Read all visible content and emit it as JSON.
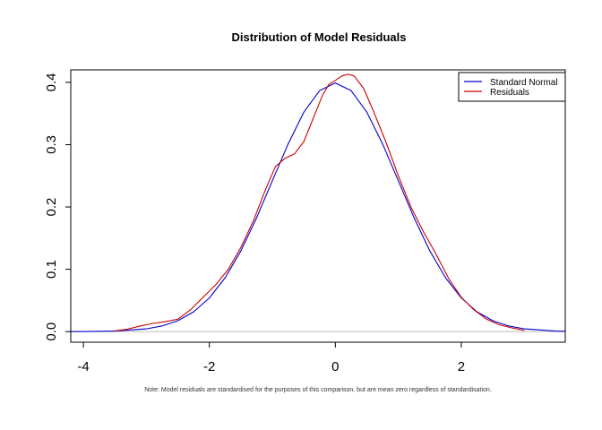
{
  "chart_data": {
    "type": "line",
    "title": "Distribution of Model Residuals",
    "xlabel": "",
    "ylabel": "",
    "note": "Note: Model residuals are standardised for the purposes of this comparison, but are mean zero regardless of standardisation.",
    "xlim": [
      -4.2,
      3.65
    ],
    "ylim": [
      -0.017,
      0.42
    ],
    "x_ticks": [
      -4,
      -2,
      0,
      2
    ],
    "x_tick_labels": [
      "-4",
      "-2",
      "0",
      "2"
    ],
    "y_ticks": [
      0.0,
      0.1,
      0.2,
      0.3,
      0.4
    ],
    "y_tick_labels": [
      "0.0",
      "0.1",
      "0.2",
      "0.3",
      "0.4"
    ],
    "reference_line": {
      "y": 0,
      "color": "#bebebe"
    },
    "legend": {
      "position": "top-right"
    },
    "series": [
      {
        "name": "Standard Normal",
        "color": "#0000cc",
        "x": [
          -4.2,
          -4.0,
          -3.5,
          -3.0,
          -2.75,
          -2.5,
          -2.25,
          -2.0,
          -1.75,
          -1.5,
          -1.25,
          -1.0,
          -0.75,
          -0.5,
          -0.25,
          0.0,
          0.25,
          0.5,
          0.75,
          1.0,
          1.25,
          1.5,
          1.75,
          2.0,
          2.25,
          2.5,
          2.75,
          3.0,
          3.5,
          3.65
        ],
        "y": [
          0.0001,
          0.0001,
          0.0009,
          0.0044,
          0.0091,
          0.0175,
          0.0317,
          0.054,
          0.0863,
          0.1295,
          0.1826,
          0.242,
          0.3011,
          0.3521,
          0.3867,
          0.3989,
          0.3867,
          0.3521,
          0.3011,
          0.242,
          0.1826,
          0.1295,
          0.0863,
          0.054,
          0.0317,
          0.0175,
          0.0091,
          0.0044,
          0.0009,
          0.0005
        ]
      },
      {
        "name": "Residuals",
        "color": "#cc0000",
        "x": [
          -3.5,
          -3.3,
          -3.1,
          -2.9,
          -2.7,
          -2.5,
          -2.3,
          -2.1,
          -1.9,
          -1.7,
          -1.5,
          -1.3,
          -1.1,
          -0.95,
          -0.8,
          -0.65,
          -0.5,
          -0.4,
          -0.3,
          -0.2,
          -0.1,
          0.0,
          0.1,
          0.2,
          0.3,
          0.45,
          0.6,
          0.8,
          1.0,
          1.2,
          1.4,
          1.6,
          1.8,
          2.0,
          2.2,
          2.4,
          2.6,
          2.8,
          3.0
        ],
        "y": [
          0.001,
          0.004,
          0.009,
          0.013,
          0.016,
          0.02,
          0.035,
          0.055,
          0.075,
          0.1,
          0.135,
          0.178,
          0.23,
          0.265,
          0.278,
          0.285,
          0.305,
          0.33,
          0.355,
          0.38,
          0.397,
          0.403,
          0.41,
          0.413,
          0.41,
          0.39,
          0.355,
          0.305,
          0.25,
          0.2,
          0.16,
          0.124,
          0.085,
          0.055,
          0.035,
          0.02,
          0.011,
          0.006,
          0.002
        ]
      }
    ]
  }
}
